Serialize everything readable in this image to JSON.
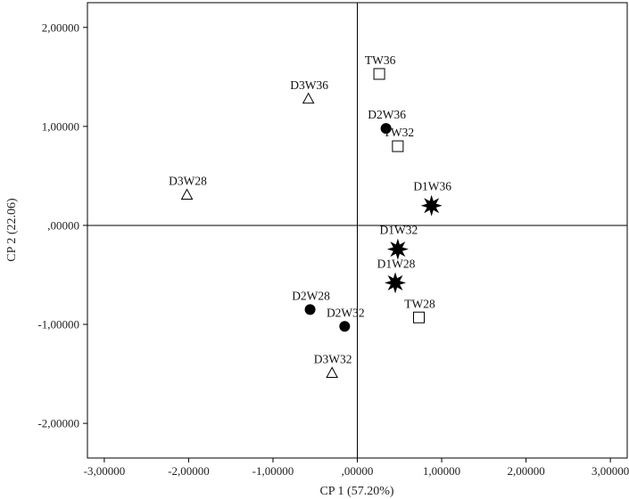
{
  "chart_data": {
    "type": "scatter",
    "title": "",
    "xlabel": "CP 1 (57.20%)",
    "ylabel": "CP 2 (22.06)",
    "xlim": [
      -3.2,
      3.2
    ],
    "ylim": [
      -2.35,
      2.25
    ],
    "grid": false,
    "x_ticks": [
      {
        "value": -3,
        "label": "-3,00000"
      },
      {
        "value": -2,
        "label": "-2,00000"
      },
      {
        "value": -1,
        "label": "-1,00000"
      },
      {
        "value": 0,
        "label": ",00000"
      },
      {
        "value": 1,
        "label": "1,00000"
      },
      {
        "value": 2,
        "label": "2,00000"
      },
      {
        "value": 3,
        "label": "3,00000"
      }
    ],
    "y_ticks": [
      {
        "value": 2,
        "label": "2,00000"
      },
      {
        "value": 1,
        "label": "1,00000"
      },
      {
        "value": 0,
        "label": ",00000"
      },
      {
        "value": -1,
        "label": "-1,00000"
      },
      {
        "value": -2,
        "label": "-2,00000"
      }
    ],
    "reference_lines": {
      "x": 0,
      "y": 0
    },
    "points": [
      {
        "label": "TW36",
        "x": 0.26,
        "y": 1.53,
        "marker": "square"
      },
      {
        "label": "D3W36",
        "x": -0.58,
        "y": 1.28,
        "marker": "triangle"
      },
      {
        "label": "D2W36",
        "x": 0.34,
        "y": 0.98,
        "marker": "circle"
      },
      {
        "label": "TW32",
        "x": 0.48,
        "y": 0.8,
        "marker": "square"
      },
      {
        "label": "D3W28",
        "x": -2.02,
        "y": 0.31,
        "marker": "triangle"
      },
      {
        "label": "D1W36",
        "x": 0.88,
        "y": 0.2,
        "marker": "star"
      },
      {
        "label": "D1W32",
        "x": 0.48,
        "y": -0.24,
        "marker": "star"
      },
      {
        "label": "D1W28",
        "x": 0.45,
        "y": -0.58,
        "marker": "star"
      },
      {
        "label": "D2W28",
        "x": -0.56,
        "y": -0.85,
        "marker": "circle"
      },
      {
        "label": "TW28",
        "x": 0.73,
        "y": -0.93,
        "marker": "square"
      },
      {
        "label": "D2W32",
        "x": -0.15,
        "y": -1.02,
        "marker": "circle"
      },
      {
        "label": "D3W32",
        "x": -0.3,
        "y": -1.49,
        "marker": "triangle"
      }
    ]
  }
}
